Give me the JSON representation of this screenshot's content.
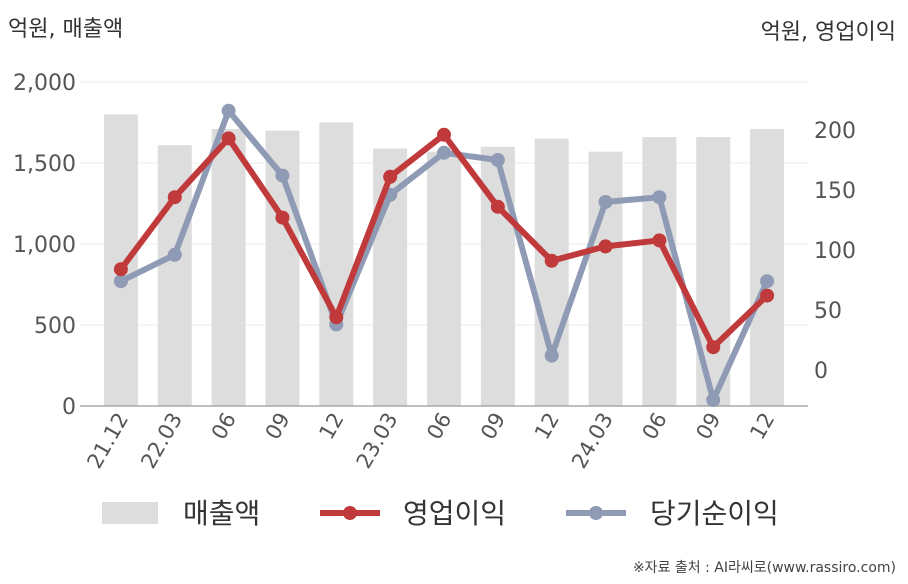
{
  "chart_data": {
    "type": "bar-line combo",
    "categories": [
      "21.12",
      "22.03",
      "06",
      "09",
      "12",
      "23.03",
      "06",
      "09",
      "12",
      "24.03",
      "06",
      "09",
      "12"
    ],
    "left_axis": {
      "label": "억원, 매출액",
      "ylim": [
        0,
        2000
      ],
      "ticks": [
        "0",
        "500",
        "1,000",
        "1,500",
        "2,000"
      ],
      "tick_values": [
        0,
        500,
        1000,
        1500,
        2000
      ]
    },
    "right_axis": {
      "label": "억원, 영업이익",
      "ylim": [
        -30,
        240
      ],
      "ticks": [
        "0",
        "50",
        "100",
        "150",
        "200"
      ],
      "tick_values": [
        0,
        50,
        100,
        150,
        200
      ]
    },
    "series": [
      {
        "name": "매출액",
        "type": "bar",
        "axis": "left",
        "color": "#dddddd",
        "values": [
          1800,
          1610,
          1710,
          1700,
          1750,
          1590,
          1570,
          1600,
          1650,
          1570,
          1660,
          1660,
          1710
        ]
      },
      {
        "name": "영업이익",
        "type": "line",
        "axis": "right",
        "color": "#c0393b",
        "values": [
          84,
          144,
          193,
          127,
          44,
          161,
          196,
          136,
          91,
          103,
          108,
          19,
          62
        ]
      },
      {
        "name": "당기순이익",
        "type": "line",
        "axis": "right",
        "color": "#8f9bb5",
        "values": [
          74,
          96,
          216,
          162,
          38,
          146,
          181,
          175,
          12,
          140,
          144,
          -25,
          74
        ]
      }
    ],
    "grid": true,
    "legend_position": "bottom"
  },
  "source_note": "※자료 출처 : AI라씨로(www.rassiro.com)"
}
